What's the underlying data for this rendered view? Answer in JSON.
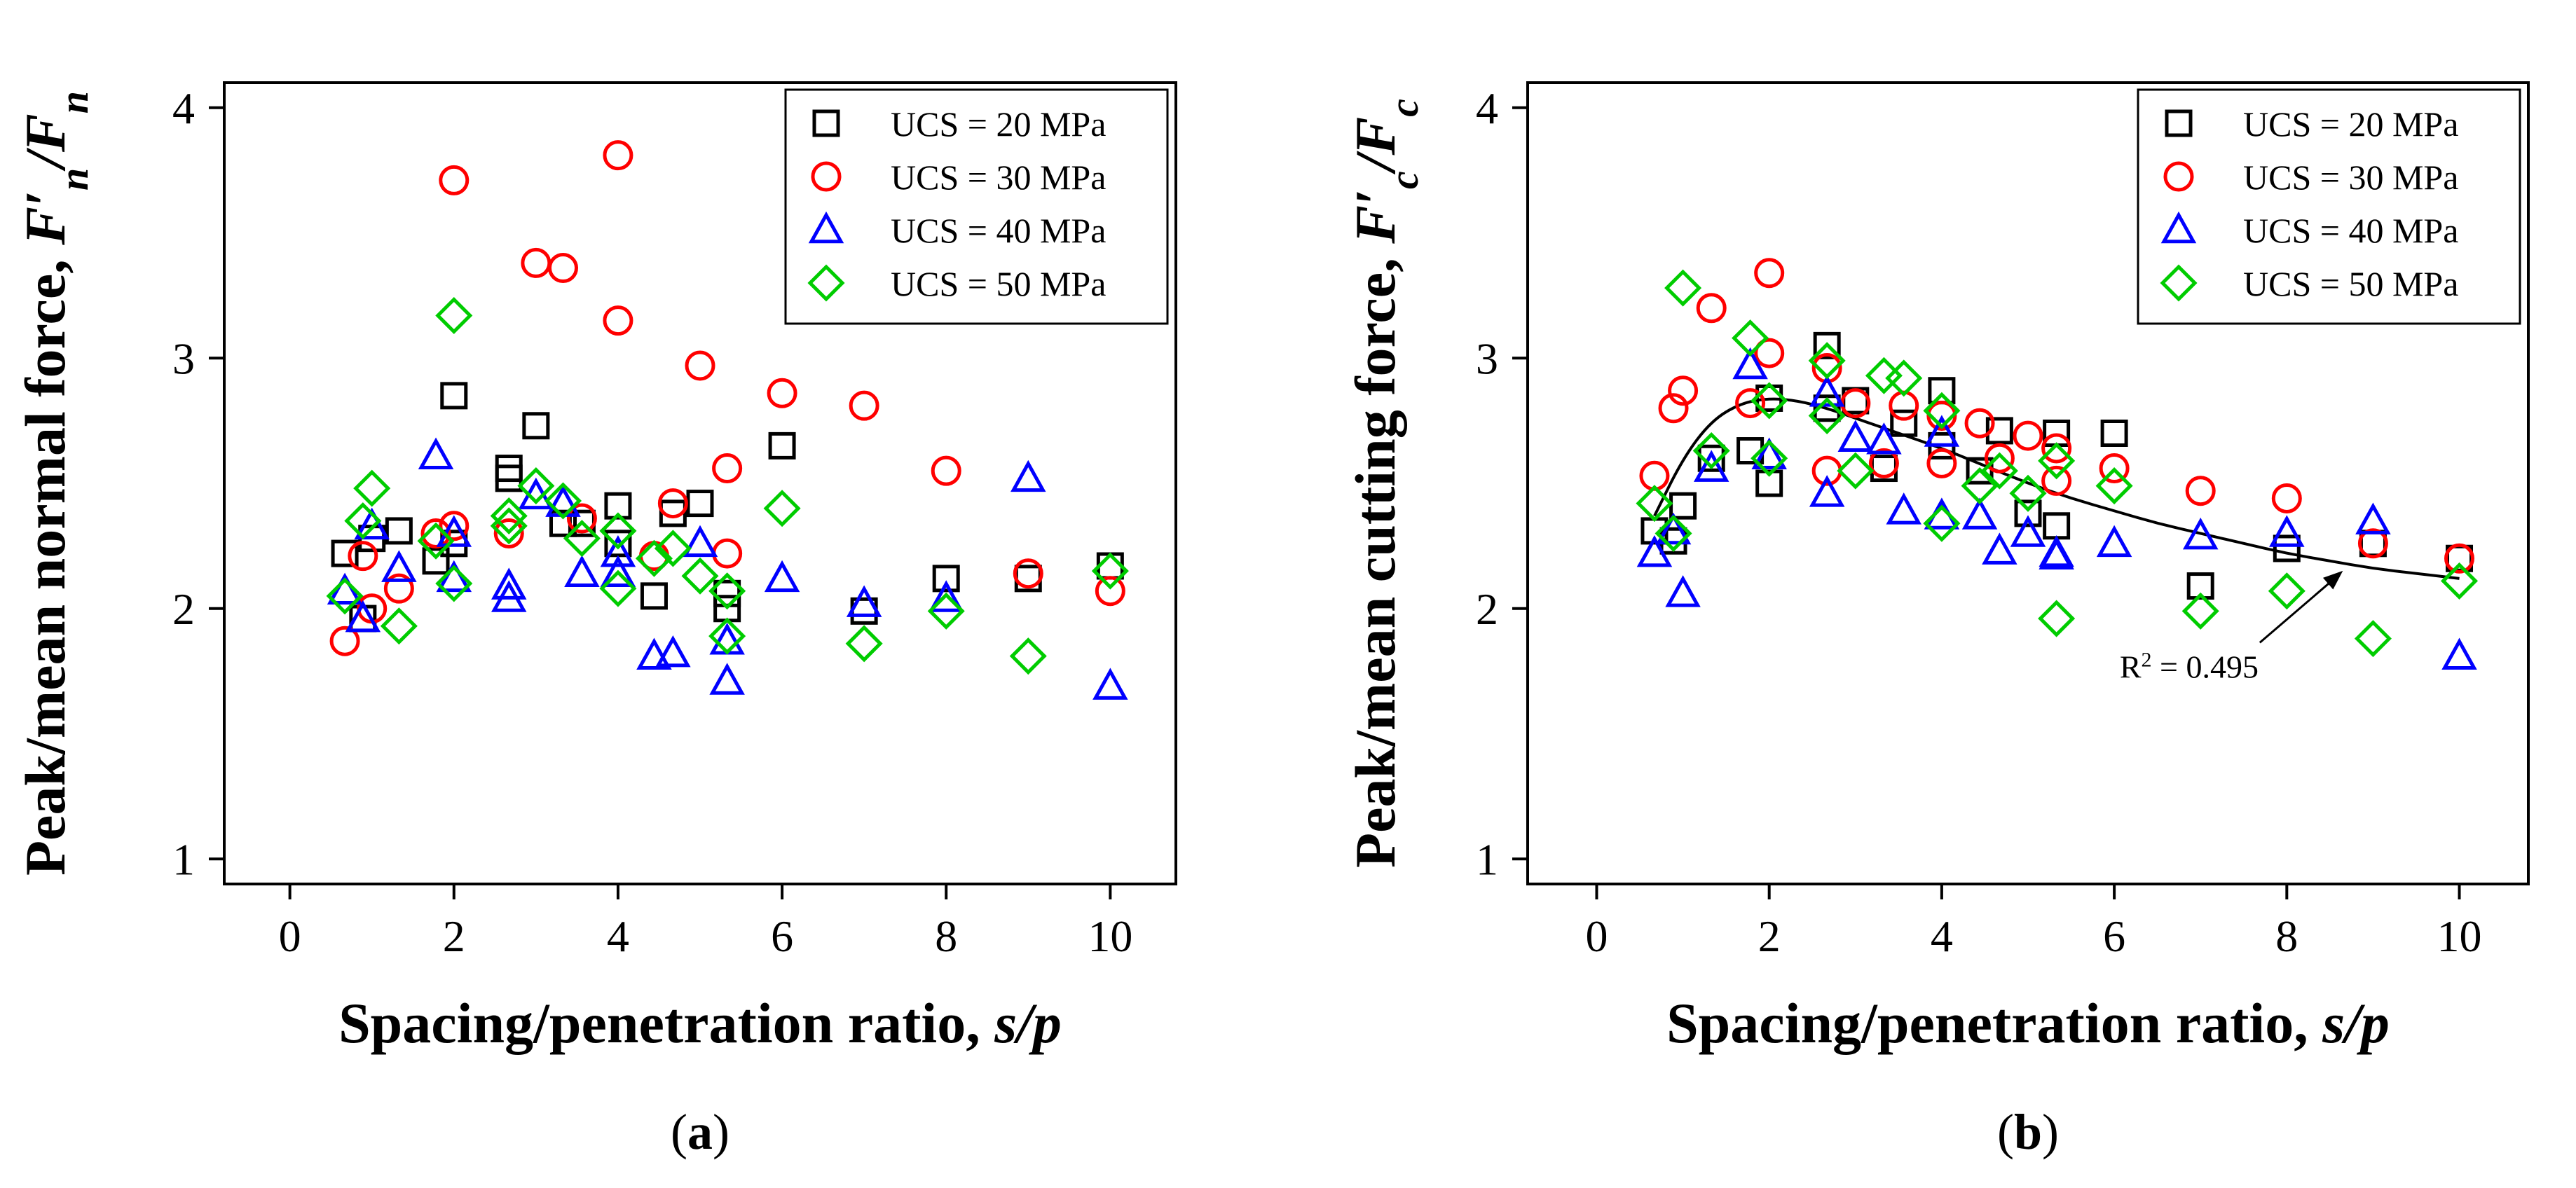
{
  "chart_data": [
    {
      "type": "scatter",
      "panel_label": "(a)",
      "xlabel": "Spacing/penetration ratio, s/p",
      "ylabel": "Peak/mean normal force, F′n/Fn",
      "xlabel_parts": [
        "Spacing/penetration ratio, ",
        "s/p"
      ],
      "ylabel_parts": [
        "Peak/mean normal force, ",
        "F′",
        "n",
        "/",
        "F",
        "n"
      ],
      "xlim": [
        -0.8,
        10.8
      ],
      "ylim": [
        0.9,
        4.1
      ],
      "xticks": [
        0,
        2,
        4,
        6,
        8,
        10
      ],
      "yticks": [
        1,
        2,
        3,
        4
      ],
      "legend_position": "top-right",
      "series": [
        {
          "name": "UCS = 20 MPa",
          "marker": "square",
          "color": "#000000",
          "points": [
            [
              0.67,
              2.22
            ],
            [
              0.89,
              1.96
            ],
            [
              1.0,
              2.28
            ],
            [
              1.33,
              2.31
            ],
            [
              1.78,
              2.19
            ],
            [
              2.0,
              2.85
            ],
            [
              2.0,
              2.26
            ],
            [
              2.67,
              2.56
            ],
            [
              2.67,
              2.52
            ],
            [
              3.0,
              2.73
            ],
            [
              3.33,
              2.34
            ],
            [
              3.56,
              2.34
            ],
            [
              4.0,
              2.41
            ],
            [
              4.0,
              2.26
            ],
            [
              4.44,
              2.05
            ],
            [
              4.67,
              2.38
            ],
            [
              5.0,
              2.42
            ],
            [
              5.33,
              2.06
            ],
            [
              5.33,
              2.0
            ],
            [
              6.0,
              2.65
            ],
            [
              7.0,
              1.99
            ],
            [
              8.0,
              2.12
            ],
            [
              9.0,
              2.12
            ],
            [
              10.0,
              2.17
            ]
          ]
        },
        {
          "name": "UCS = 30 MPa",
          "marker": "circle",
          "color": "#ff0000",
          "points": [
            [
              0.67,
              1.87
            ],
            [
              0.89,
              2.21
            ],
            [
              1.0,
              2.0
            ],
            [
              1.33,
              2.08
            ],
            [
              1.78,
              2.3
            ],
            [
              2.0,
              3.71
            ],
            [
              2.0,
              2.33
            ],
            [
              2.67,
              2.3
            ],
            [
              3.0,
              3.38
            ],
            [
              3.33,
              3.36
            ],
            [
              3.56,
              2.36
            ],
            [
              4.0,
              3.81
            ],
            [
              4.0,
              3.15
            ],
            [
              4.44,
              2.21
            ],
            [
              4.67,
              2.42
            ],
            [
              5.0,
              2.97
            ],
            [
              5.33,
              2.56
            ],
            [
              5.33,
              2.22
            ],
            [
              6.0,
              2.86
            ],
            [
              7.0,
              2.81
            ],
            [
              8.0,
              2.55
            ],
            [
              9.0,
              2.14
            ],
            [
              10.0,
              2.07
            ]
          ]
        },
        {
          "name": "UCS = 40 MPa",
          "marker": "triangle",
          "color": "#0000ff",
          "points": [
            [
              0.67,
              2.07
            ],
            [
              0.89,
              1.96
            ],
            [
              1.0,
              2.33
            ],
            [
              1.33,
              2.16
            ],
            [
              1.78,
              2.61
            ],
            [
              2.0,
              2.3
            ],
            [
              2.0,
              2.12
            ],
            [
              2.67,
              2.04
            ],
            [
              2.67,
              2.09
            ],
            [
              3.0,
              2.45
            ],
            [
              3.33,
              2.42
            ],
            [
              3.56,
              2.14
            ],
            [
              4.0,
              2.22
            ],
            [
              4.0,
              2.14
            ],
            [
              4.44,
              1.81
            ],
            [
              4.67,
              1.82
            ],
            [
              5.0,
              2.26
            ],
            [
              5.33,
              1.87
            ],
            [
              5.33,
              1.71
            ],
            [
              6.0,
              2.12
            ],
            [
              7.0,
              2.02
            ],
            [
              8.0,
              2.04
            ],
            [
              9.0,
              2.52
            ],
            [
              10.0,
              1.69
            ]
          ]
        },
        {
          "name": "UCS = 50 MPa",
          "marker": "diamond",
          "color": "#00cc00",
          "points": [
            [
              0.67,
              2.05
            ],
            [
              0.89,
              2.35
            ],
            [
              1.0,
              2.48
            ],
            [
              1.33,
              1.93
            ],
            [
              1.78,
              2.27
            ],
            [
              2.0,
              3.17
            ],
            [
              2.0,
              2.1
            ],
            [
              2.67,
              2.37
            ],
            [
              2.67,
              2.33
            ],
            [
              3.0,
              2.49
            ],
            [
              3.33,
              2.43
            ],
            [
              3.56,
              2.28
            ],
            [
              4.0,
              2.31
            ],
            [
              4.0,
              2.08
            ],
            [
              4.44,
              2.2
            ],
            [
              4.67,
              2.24
            ],
            [
              5.0,
              2.13
            ],
            [
              5.33,
              2.07
            ],
            [
              5.33,
              1.89
            ],
            [
              6.0,
              2.4
            ],
            [
              7.0,
              1.86
            ],
            [
              8.0,
              1.99
            ],
            [
              9.0,
              1.81
            ],
            [
              10.0,
              2.15
            ]
          ]
        }
      ]
    },
    {
      "type": "scatter",
      "panel_label": "(b)",
      "xlabel": "Spacing/penetration ratio, s/p",
      "ylabel": "Peak/mean cutting force, F′c/Fc",
      "xlabel_parts": [
        "Spacing/penetration ratio, ",
        "s/p"
      ],
      "ylabel_parts": [
        "Peak/mean cutting force, ",
        "F′",
        "c",
        "/",
        "F",
        "c"
      ],
      "xlim": [
        -0.8,
        10.8
      ],
      "ylim": [
        0.9,
        4.1
      ],
      "xticks": [
        0,
        2,
        4,
        6,
        8,
        10
      ],
      "yticks": [
        1,
        2,
        3,
        4
      ],
      "legend_position": "top-right",
      "fit_curve": {
        "x": [
          0.67,
          1.0,
          1.33,
          1.67,
          2.0,
          2.33,
          2.67,
          3.0,
          3.5,
          4.0,
          4.5,
          5.0,
          5.5,
          6.0,
          6.5,
          7.0,
          7.5,
          8.0,
          8.5,
          9.0,
          9.5,
          10.0
        ],
        "y": [
          2.37,
          2.6,
          2.75,
          2.82,
          2.84,
          2.83,
          2.8,
          2.76,
          2.7,
          2.64,
          2.57,
          2.5,
          2.44,
          2.39,
          2.34,
          2.3,
          2.26,
          2.22,
          2.19,
          2.16,
          2.14,
          2.12
        ],
        "annotation": "R² = 0.495",
        "annotation_parts": [
          "R",
          "2",
          " = 0.495"
        ],
        "arrow_from": [
          7.2,
          1.78
        ],
        "arrow_to": [
          8.65,
          2.19
        ]
      },
      "series": [
        {
          "name": "UCS = 20 MPa",
          "marker": "square",
          "color": "#000000",
          "points": [
            [
              0.67,
              2.31
            ],
            [
              0.89,
              2.27
            ],
            [
              1.0,
              2.41
            ],
            [
              1.33,
              2.6
            ],
            [
              1.78,
              2.63
            ],
            [
              2.0,
              2.84
            ],
            [
              2.0,
              2.5
            ],
            [
              2.67,
              3.05
            ],
            [
              2.67,
              2.8
            ],
            [
              3.0,
              2.83
            ],
            [
              3.33,
              2.56
            ],
            [
              3.56,
              2.74
            ],
            [
              4.0,
              2.87
            ],
            [
              4.0,
              2.65
            ],
            [
              4.44,
              2.55
            ],
            [
              4.67,
              2.71
            ],
            [
              5.0,
              2.38
            ],
            [
              5.33,
              2.7
            ],
            [
              5.33,
              2.33
            ],
            [
              6.0,
              2.7
            ],
            [
              7.0,
              2.09
            ],
            [
              8.0,
              2.24
            ],
            [
              9.0,
              2.26
            ],
            [
              10.0,
              2.2
            ]
          ]
        },
        {
          "name": "UCS = 30 MPa",
          "marker": "circle",
          "color": "#ff0000",
          "points": [
            [
              0.67,
              2.53
            ],
            [
              0.89,
              2.8
            ],
            [
              1.0,
              2.87
            ],
            [
              1.33,
              3.2
            ],
            [
              1.78,
              2.82
            ],
            [
              2.0,
              3.34
            ],
            [
              2.0,
              3.02
            ],
            [
              2.67,
              2.55
            ],
            [
              2.67,
              2.96
            ],
            [
              3.0,
              2.82
            ],
            [
              3.33,
              2.58
            ],
            [
              3.56,
              2.81
            ],
            [
              4.0,
              2.77
            ],
            [
              4.0,
              2.58
            ],
            [
              4.44,
              2.74
            ],
            [
              4.67,
              2.6
            ],
            [
              5.0,
              2.69
            ],
            [
              5.33,
              2.64
            ],
            [
              5.33,
              2.51
            ],
            [
              6.0,
              2.56
            ],
            [
              7.0,
              2.47
            ],
            [
              8.0,
              2.44
            ],
            [
              9.0,
              2.26
            ],
            [
              10.0,
              2.2
            ]
          ]
        },
        {
          "name": "UCS = 40 MPa",
          "marker": "triangle",
          "color": "#0000ff",
          "points": [
            [
              0.67,
              2.22
            ],
            [
              0.89,
              2.31
            ],
            [
              1.0,
              2.06
            ],
            [
              1.33,
              2.56
            ],
            [
              1.78,
              2.97
            ],
            [
              2.0,
              2.61
            ],
            [
              2.67,
              2.86
            ],
            [
              2.67,
              2.46
            ],
            [
              3.0,
              2.68
            ],
            [
              3.33,
              2.67
            ],
            [
              3.56,
              2.39
            ],
            [
              4.0,
              2.7
            ],
            [
              4.0,
              2.37
            ],
            [
              4.44,
              2.37
            ],
            [
              4.67,
              2.23
            ],
            [
              5.0,
              2.3
            ],
            [
              5.33,
              2.21
            ],
            [
              5.33,
              2.22
            ],
            [
              6.0,
              2.26
            ],
            [
              7.0,
              2.29
            ],
            [
              8.0,
              2.3
            ],
            [
              9.0,
              2.35
            ],
            [
              10.0,
              1.81
            ]
          ]
        },
        {
          "name": "UCS = 50 MPa",
          "marker": "diamond",
          "color": "#00cc00",
          "points": [
            [
              0.67,
              2.42
            ],
            [
              0.89,
              2.3
            ],
            [
              1.0,
              3.28
            ],
            [
              1.33,
              2.63
            ],
            [
              1.78,
              3.08
            ],
            [
              2.0,
              2.83
            ],
            [
              2.0,
              2.6
            ],
            [
              2.67,
              2.99
            ],
            [
              2.67,
              2.77
            ],
            [
              3.0,
              2.55
            ],
            [
              3.33,
              2.93
            ],
            [
              3.56,
              2.92
            ],
            [
              4.0,
              2.79
            ],
            [
              4.0,
              2.34
            ],
            [
              4.44,
              2.49
            ],
            [
              4.67,
              2.55
            ],
            [
              5.0,
              2.46
            ],
            [
              5.33,
              2.59
            ],
            [
              5.33,
              1.96
            ],
            [
              6.0,
              2.49
            ],
            [
              7.0,
              1.99
            ],
            [
              8.0,
              2.07
            ],
            [
              9.0,
              1.88
            ],
            [
              10.0,
              2.11
            ]
          ]
        }
      ]
    }
  ]
}
